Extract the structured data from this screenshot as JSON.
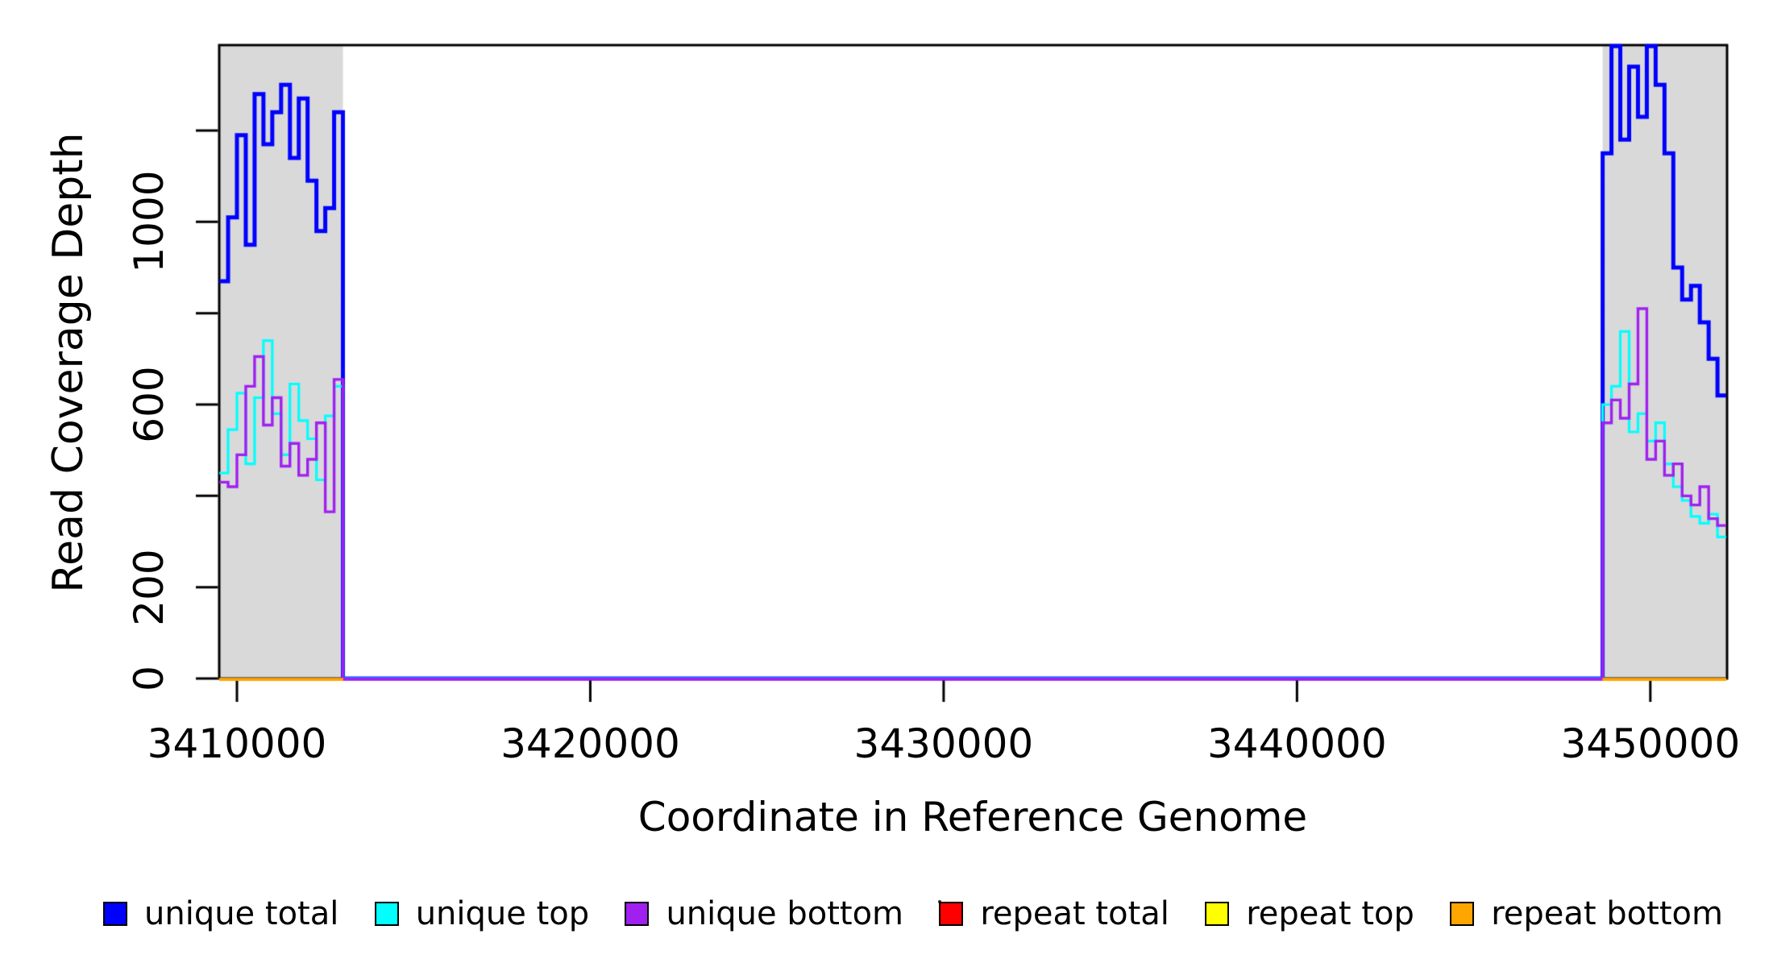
{
  "figure": {
    "background": "#FFFFFF"
  },
  "axes": {
    "x_label": "Coordinate in Reference Genome",
    "y_label": "Read Coverage Depth",
    "x_ticks": [
      {
        "value": 3410000,
        "label": "3410000"
      },
      {
        "value": 3420000,
        "label": "3420000"
      },
      {
        "value": 3430000,
        "label": "3430000"
      },
      {
        "value": 3440000,
        "label": "3440000"
      },
      {
        "value": 3450000,
        "label": "3450000"
      }
    ],
    "y_ticks": [
      {
        "value": 0,
        "label": "0"
      },
      {
        "value": 200,
        "label": "200"
      },
      {
        "value": 400,
        "label": ""
      },
      {
        "value": 600,
        "label": "600"
      },
      {
        "value": 800,
        "label": ""
      },
      {
        "value": 1000,
        "label": "1000"
      },
      {
        "value": 1200,
        "label": ""
      }
    ]
  },
  "legend": [
    {
      "label": "unique total",
      "color": "#0000FF"
    },
    {
      "label": "unique top",
      "color": "#00FFFF"
    },
    {
      "label": "unique bottom",
      "color": "#A020F0"
    },
    {
      "label": "repeat total",
      "color": "#FF0000"
    },
    {
      "label": "repeat top",
      "color": "#FFFF00"
    },
    {
      "label": "repeat bottom",
      "color": "#FFA500"
    }
  ],
  "chart_data": {
    "type": "line",
    "subtype": "step-coverage",
    "title": "",
    "xlabel": "Coordinate in Reference Genome",
    "ylabel": "Read Coverage Depth",
    "xlim": [
      3409500,
      3452150
    ],
    "ylim": [
      0,
      1386
    ],
    "grid": false,
    "window_size": 250,
    "highlight_color": "#D9D9D9",
    "highlight_regions": [
      {
        "start": 3409500,
        "end": 3413000
      },
      {
        "start": 3448650,
        "end": 3452150
      }
    ],
    "note": "Coverage is zero between the two shaded repeat-flank regions; repeat series are zero everywhere",
    "series": [
      {
        "name": "unique total",
        "color": "#0000FF",
        "linewidth": 5,
        "regions_only": false,
        "zero_offset": 0,
        "left_values": [
          870,
          1010,
          1190,
          950,
          1280,
          1170,
          1240,
          1300,
          1140,
          1270,
          1090,
          980,
          1030,
          1240
        ],
        "right_values": [
          1150,
          1385,
          1180,
          1340,
          1230,
          1385,
          1300,
          1150,
          900,
          830,
          860,
          780,
          700,
          620
        ]
      },
      {
        "name": "unique top",
        "color": "#00FFFF",
        "linewidth": 3.2,
        "regions_only": false,
        "zero_offset": 0.2,
        "left_values": [
          450,
          545,
          625,
          470,
          615,
          740,
          580,
          490,
          645,
          565,
          525,
          435,
          575,
          640
        ],
        "right_values": [
          600,
          640,
          760,
          540,
          580,
          520,
          560,
          470,
          420,
          390,
          355,
          340,
          360,
          310
        ]
      },
      {
        "name": "unique bottom",
        "color": "#A020F0",
        "linewidth": 3.4,
        "regions_only": false,
        "zero_offset": 0.7,
        "left_values": [
          430,
          420,
          490,
          640,
          705,
          555,
          615,
          465,
          515,
          445,
          480,
          560,
          365,
          655
        ],
        "right_values": [
          560,
          610,
          570,
          645,
          810,
          480,
          520,
          445,
          470,
          400,
          380,
          420,
          350,
          335
        ]
      },
      {
        "name": "repeat total",
        "color": "#FF0000",
        "linewidth": 3,
        "regions_only": true,
        "zero_offset": 0.9,
        "left_values": [
          0,
          0,
          0,
          0,
          0,
          0,
          0,
          0,
          0,
          0,
          0,
          0,
          0,
          0
        ],
        "right_values": [
          0,
          0,
          0,
          0,
          0,
          0,
          0,
          0,
          0,
          0,
          0,
          0,
          0,
          0
        ]
      },
      {
        "name": "repeat top",
        "color": "#FFFF00",
        "linewidth": 3,
        "regions_only": true,
        "zero_offset": 0.9,
        "left_values": [
          0,
          0,
          0,
          0,
          0,
          0,
          0,
          0,
          0,
          0,
          0,
          0,
          0,
          0
        ],
        "right_values": [
          0,
          0,
          0,
          0,
          0,
          0,
          0,
          0,
          0,
          0,
          0,
          0,
          0,
          0
        ]
      },
      {
        "name": "repeat bottom",
        "color": "#FFA500",
        "linewidth": 3.5,
        "regions_only": true,
        "zero_offset": 1.3,
        "left_values": [
          0,
          0,
          0,
          0,
          0,
          0,
          0,
          0,
          0,
          0,
          0,
          0,
          0,
          0
        ],
        "right_values": [
          0,
          0,
          0,
          0,
          0,
          0,
          0,
          0,
          0,
          0,
          0,
          0,
          0,
          0
        ]
      }
    ]
  }
}
